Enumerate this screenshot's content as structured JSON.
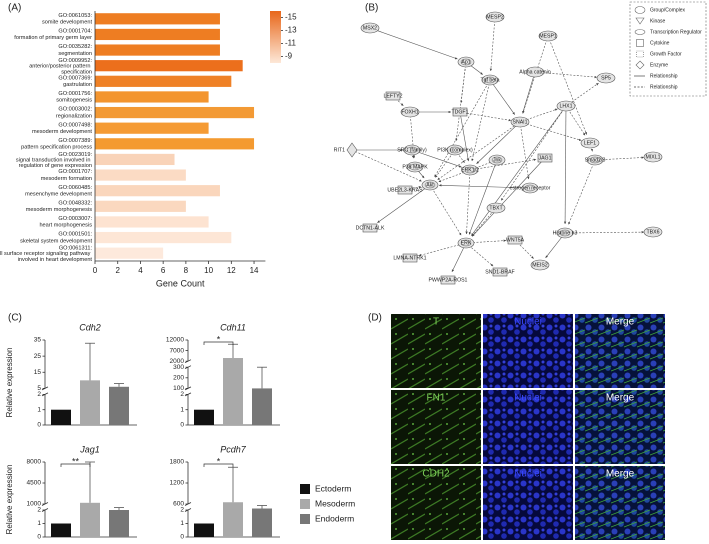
{
  "chart_data": [
    {
      "type": "hbar",
      "panel": "(A)",
      "xlabel": "Gene Count",
      "category_ids": [
        "GO:0061053:",
        "GO:0001704:",
        "GO:0035282:",
        "GO:0009952:",
        "GO:0007369:",
        "GO:0001756:",
        "GO:0003002:",
        "GO:0007498:",
        "GO:0007389:",
        "GO:0023019:",
        "GO:0001707:",
        "GO:0060485:",
        "GO:0048332:",
        "GO:0003007:",
        "GO:0001501:",
        "GO:0061311:"
      ],
      "categories": [
        "somite development",
        "formation of primary germ layer",
        "segmentation",
        "anterior/posterior pattern specification",
        "gastrulation",
        "somitogenesis",
        "regionalization",
        "mesoderm development",
        "pattern specification process",
        "signal transduction involved in regulation of gene expression",
        "mesoderm formation",
        "mesenchyme development",
        "mesoderm morphogenesis",
        "heart morphogenesis",
        "skeletal system development",
        "cell surface receptor signaling pathway involved in heart development"
      ],
      "values": [
        11,
        11,
        11,
        13,
        12,
        10,
        14,
        10,
        14,
        7,
        8,
        11,
        8,
        10,
        12,
        6
      ],
      "colors": [
        "#ee7d22",
        "#ee7d22",
        "#ee7d22",
        "#ec6f1c",
        "#ef8126",
        "#f3952f",
        "#f39a35",
        "#f59b34",
        "#f49a30",
        "#f9d3b8",
        "#fbdbc4",
        "#fad6bc",
        "#fad8bf",
        "#fde3d1",
        "#fde6d6",
        "#fde9dc"
      ],
      "xlim": [
        0,
        15
      ],
      "xticks": [
        0,
        2,
        4,
        6,
        8,
        10,
        12,
        14
      ],
      "colorbar": {
        "clim": [
          -16,
          -8
        ],
        "ticks": [
          -15,
          -13,
          -11,
          -9
        ],
        "colors": [
          "#e8671a",
          "#fde8d8"
        ]
      }
    },
    {
      "type": "broken-bar",
      "title": "Cdh2",
      "ylabel": "Relative expression",
      "ylim": [
        [
          0,
          2
        ],
        [
          5,
          35
        ]
      ],
      "yticks": [
        [
          0,
          1,
          2
        ],
        [
          5,
          15,
          25,
          35
        ]
      ],
      "values": [
        1,
        10,
        6
      ],
      "errors": [
        null,
        23,
        2
      ]
    },
    {
      "type": "broken-bar",
      "title": "Cdh11",
      "significance": "*",
      "ylim": [
        [
          0,
          2
        ],
        [
          100,
          300
        ],
        [
          2000,
          12000
        ]
      ],
      "yticks": [
        [
          0,
          1,
          2
        ],
        [
          100,
          200,
          300
        ],
        [
          2000,
          7000,
          12000
        ]
      ],
      "values": [
        1,
        3500,
        100
      ],
      "errors": [
        null,
        6500,
        200
      ]
    },
    {
      "type": "broken-bar",
      "title": "Jag1",
      "ylabel": "Relative expression",
      "significance": "**",
      "ylim": [
        [
          0,
          2
        ],
        [
          1000,
          8000
        ]
      ],
      "yticks": [
        [
          0,
          1,
          2
        ],
        [
          1000,
          4500,
          8000
        ]
      ],
      "values": [
        1,
        1200,
        2
      ],
      "errors": [
        null,
        6800,
        400
      ]
    },
    {
      "type": "broken-bar",
      "title": "Pcdh7",
      "significance": "*",
      "ylim": [
        [
          0,
          2
        ],
        [
          600,
          1800
        ]
      ],
      "yticks": [
        [
          0,
          1,
          2
        ],
        [
          600,
          1200,
          1800
        ]
      ],
      "values": [
        1,
        650,
        150
      ],
      "errors": [
        null,
        1000,
        300
      ]
    }
  ],
  "panel_c_label": "(C)",
  "expression_legend": {
    "names": [
      "Ectoderm",
      "Mesoderm",
      "Endoderm"
    ],
    "colors": [
      "#111111",
      "#a9a9a9",
      "#777777"
    ]
  },
  "network": {
    "label": "(B)",
    "nodes": [
      "MSX2",
      "MESP2",
      "MESP1",
      "Ap1",
      "Tgf beta",
      "Alpha catenin",
      "SP5",
      "LEFTY2",
      "FOXH1",
      "TDGF1",
      "SNAI1",
      "LHX1",
      "LEF1",
      "RIT1",
      "SRC (family)",
      "PI3K (complex)",
      "P38 MAPK",
      "ERK1/2",
      "Jnk",
      "JAG1",
      "Smad2/3",
      "MIXL1",
      "estrogen receptor",
      "UBE2L3-KRAS",
      "Akt",
      "TBXT",
      "Histone h3",
      "ERK",
      "WNT5A",
      "TBX6",
      "DCTN1-ALK",
      "LMNA-NTRK1",
      "PWWP2A-ROS1",
      "SND1-BRAF",
      "MEIS2"
    ],
    "legend": [
      "Group/Complex",
      "Kinase",
      "Transcription Regulator",
      "Cytokine",
      "Growth Factor",
      "Enzyme",
      "Relationship",
      "Relationship"
    ]
  },
  "immunofluorescence": {
    "label": "(D)",
    "rows": [
      [
        "T",
        "Nuclei",
        "Merge"
      ],
      [
        "FN1",
        "Nuclei",
        "Merge"
      ],
      [
        "CDH2",
        "Nuclei",
        "Merge"
      ]
    ]
  }
}
